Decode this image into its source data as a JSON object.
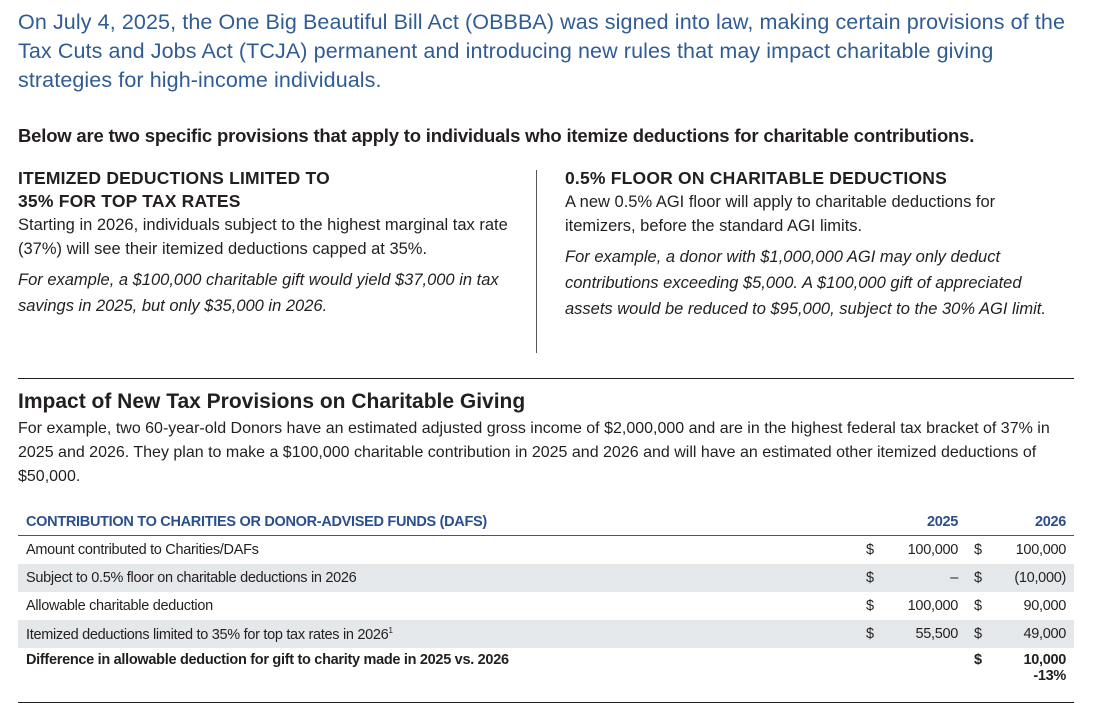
{
  "intro": "On July 4, 2025, the One Big Beautiful Bill Act (OBBBA) was signed into law, making certain provisions of the Tax Cuts and Jobs Act (TCJA) permanent and introducing new rules that may impact charitable giving strategies for high-income individuals.",
  "lead": "Below are two specific provisions that apply to individuals who itemize deductions for charitable contributions.",
  "left": {
    "heading_1": "ITEMIZED DEDUCTIONS LIMITED TO",
    "heading_2": "35% FOR TOP TAX RATES",
    "body": "Starting in 2026, individuals subject to the highest marginal tax rate (37%) will see their itemized deductions capped at 35%.",
    "example": "For example, a $100,000 charitable gift would yield $37,000 in tax savings in 2025, but only $35,000 in 2026."
  },
  "right": {
    "heading": "0.5% FLOOR ON CHARITABLE DEDUCTIONS",
    "body": "A new 0.5% AGI floor will apply to charitable deductions for itemizers, before the standard AGI limits.",
    "example": "For example, a donor with $1,000,000 AGI may only deduct contributions exceeding $5,000. A $100,000 gift of appreciated assets would be reduced to $95,000, subject to the 30% AGI limit."
  },
  "section": {
    "title": "Impact of New Tax Provisions on Charitable Giving",
    "text": "For example, two 60-year-old Donors have an estimated adjusted gross income of $2,000,000 and are in the highest federal tax bracket of 37% in 2025 and 2026. They plan to make a $100,000 charitable contribution in 2025 and 2026 and will have an estimated other itemized deductions of $50,000."
  },
  "table": {
    "header": {
      "label": "CONTRIBUTION TO CHARITIES OR DONOR-ADVISED FUNDS (DAFS)",
      "y2025": "2025",
      "y2026": "2026"
    },
    "rows": [
      {
        "label": "Amount contributed to Charities/DAFs",
        "c1": "$",
        "v1": "100,000",
        "c2": "$",
        "v2": "100,000"
      },
      {
        "label": "Subject to 0.5% floor on charitable deductions in 2026",
        "c1": "$",
        "v1": "–",
        "c2": "$",
        "v2": "(10,000)"
      },
      {
        "label": "Allowable charitable deduction",
        "c1": "$",
        "v1": "100,000",
        "c2": "$",
        "v2": "90,000"
      },
      {
        "label": "Itemized deductions limited to 35% for top tax rates in 2026",
        "sup": "1",
        "c1": "$",
        "v1": "55,500",
        "c2": "$",
        "v2": "49,000"
      }
    ],
    "total": {
      "label": "Difference in allowable deduction for gift to charity made in 2025 vs. 2026",
      "c2": "$",
      "v2": "10,000",
      "pct": "-13%"
    }
  },
  "colors": {
    "blue_text": "#2f5c94",
    "table_header": "#2a4f8f",
    "band": "#e4e8ea"
  }
}
